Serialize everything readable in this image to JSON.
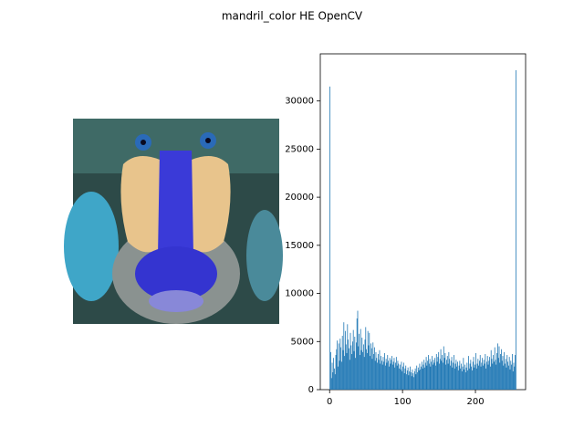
{
  "chart_data": {
    "type": "histogram",
    "title": "mandril_color HE OpenCV",
    "color": "#1f77b4",
    "bins": [
      0,
      1,
      2,
      3,
      4,
      5,
      6,
      7,
      8,
      9,
      10,
      11,
      12,
      13,
      14,
      15,
      16,
      17,
      18,
      19,
      20,
      21,
      22,
      23,
      24,
      25,
      26,
      27,
      28,
      29,
      30,
      31,
      32,
      33,
      34,
      35,
      36,
      37,
      38,
      39,
      40,
      41,
      42,
      43,
      44,
      45,
      46,
      47,
      48,
      49,
      50,
      51,
      52,
      53,
      54,
      55,
      56,
      57,
      58,
      59,
      60,
      61,
      62,
      63,
      64,
      65,
      66,
      67,
      68,
      69,
      70,
      71,
      72,
      73,
      74,
      75,
      76,
      77,
      78,
      79,
      80,
      81,
      82,
      83,
      84,
      85,
      86,
      87,
      88,
      89,
      90,
      91,
      92,
      93,
      94,
      95,
      96,
      97,
      98,
      99,
      100,
      101,
      102,
      103,
      104,
      105,
      106,
      107,
      108,
      109,
      110,
      111,
      112,
      113,
      114,
      115,
      116,
      117,
      118,
      119,
      120,
      121,
      122,
      123,
      124,
      125,
      126,
      127,
      128,
      129,
      130,
      131,
      132,
      133,
      134,
      135,
      136,
      137,
      138,
      139,
      140,
      141,
      142,
      143,
      144,
      145,
      146,
      147,
      148,
      149,
      150,
      151,
      152,
      153,
      154,
      155,
      156,
      157,
      158,
      159,
      160,
      161,
      162,
      163,
      164,
      165,
      166,
      167,
      168,
      169,
      170,
      171,
      172,
      173,
      174,
      175,
      176,
      177,
      178,
      179,
      180,
      181,
      182,
      183,
      184,
      185,
      186,
      187,
      188,
      189,
      190,
      191,
      192,
      193,
      194,
      195,
      196,
      197,
      198,
      199,
      200,
      201,
      202,
      203,
      204,
      205,
      206,
      207,
      208,
      209,
      210,
      211,
      212,
      213,
      214,
      215,
      216,
      217,
      218,
      219,
      220,
      221,
      222,
      223,
      224,
      225,
      226,
      227,
      228,
      229,
      230,
      231,
      232,
      233,
      234,
      235,
      236,
      237,
      238,
      239,
      240,
      241,
      242,
      243,
      244,
      245,
      246,
      247,
      248,
      249,
      250,
      251,
      252,
      253,
      254,
      255,
      256
    ],
    "counts": [
      31500,
      3900,
      1200,
      2800,
      1800,
      3300,
      2200,
      1600,
      3600,
      4200,
      5100,
      2400,
      4800,
      3000,
      5300,
      4400,
      2900,
      5600,
      4100,
      7000,
      3500,
      6100,
      4700,
      3800,
      6800,
      5200,
      4300,
      3100,
      5900,
      4600,
      3700,
      5000,
      6200,
      4000,
      5500,
      3300,
      4900,
      7400,
      8200,
      4500,
      5800,
      3600,
      6300,
      4100,
      5400,
      3900,
      4700,
      3400,
      5200,
      6500,
      4200,
      3800,
      6100,
      4600,
      5900,
      3500,
      4800,
      4300,
      3200,
      4900,
      3700,
      4400,
      3000,
      3900,
      3300,
      2800,
      3700,
      3100,
      4100,
      2700,
      3500,
      3000,
      2600,
      3400,
      2900,
      3800,
      2500,
      3200,
      2800,
      3600,
      3000,
      2400,
      3300,
      2700,
      3100,
      3500,
      2600,
      2900,
      3300,
      2300,
      2800,
      3400,
      2500,
      3000,
      2700,
      2200,
      2600,
      2100,
      2900,
      1900,
      2400,
      2800,
      1700,
      2200,
      2500,
      1600,
      2000,
      2300,
      1500,
      1900,
      2400,
      1800,
      1400,
      2100,
      1700,
      1300,
      1900,
      2200,
      1600,
      2500,
      1800,
      2300,
      2000,
      2700,
      2100,
      2400,
      2900,
      2200,
      2600,
      3100,
      2300,
      2800,
      3400,
      2500,
      3000,
      3600,
      2700,
      3200,
      2400,
      2900,
      3500,
      2600,
      3100,
      2800,
      3300,
      2500,
      3700,
      2900,
      3400,
      3900,
      2700,
      3200,
      4200,
      3000,
      3600,
      2800,
      4500,
      3300,
      3800,
      2600,
      3100,
      3500,
      2700,
      3900,
      3200,
      2500,
      3000,
      3400,
      2300,
      2800,
      3600,
      2200,
      2700,
      3100,
      2400,
      2900,
      2000,
      2500,
      3000,
      2200,
      2700,
      1900,
      2400,
      3300,
      2100,
      2600,
      1800,
      2300,
      2800,
      2000,
      3500,
      2200,
      2700,
      3100,
      2400,
      2000,
      2900,
      3400,
      2300,
      2600,
      3800,
      2200,
      2700,
      3200,
      2500,
      3000,
      3600,
      2400,
      2800,
      3300,
      2500,
      3100,
      2700,
      3700,
      2200,
      2900,
      3500,
      2600,
      3000,
      3400,
      2400,
      4100,
      3200,
      2700,
      3600,
      2900,
      4400,
      3100,
      2600,
      3800,
      4800,
      3300,
      4500,
      2800,
      3700,
      4200,
      3000,
      3500,
      2500,
      3900,
      2700,
      3200,
      2300,
      3600,
      2900,
      2500,
      3400,
      2100,
      3000,
      2600,
      3700,
      1900,
      2800,
      2400,
      3600,
      33200
    ],
    "xlim": [
      -12.8,
      268.8
    ],
    "xticks": [
      0,
      100,
      200
    ],
    "ylim": [
      0,
      34900
    ],
    "yticks": [
      0,
      5000,
      10000,
      15000,
      20000,
      25000,
      30000
    ]
  }
}
